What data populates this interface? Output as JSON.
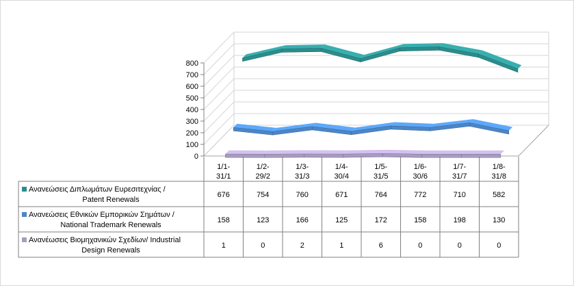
{
  "chart_data": {
    "type": "line",
    "style": "3d-line",
    "categories": [
      [
        "1/1-",
        "31/1"
      ],
      [
        "1/2-",
        "29/2"
      ],
      [
        "1/3-",
        "31/3"
      ],
      [
        "1/4-",
        "30/4"
      ],
      [
        "1/5-",
        "31/5"
      ],
      [
        "1/6-",
        "30/6"
      ],
      [
        "1/7-",
        "31/7"
      ],
      [
        "1/8-",
        "31/8"
      ]
    ],
    "ylim": [
      0,
      800
    ],
    "yticks": [
      "0",
      "100",
      "200",
      "300",
      "400",
      "500",
      "600",
      "700",
      "800"
    ],
    "grid": true,
    "data_table": true,
    "series": [
      {
        "name_lines": [
          "Ανανεώσεις Διπλωμάτων Ευρεσιτεχνίας  /",
          "Patent Renewals"
        ],
        "color": "#2c8c8c",
        "values": [
          676,
          754,
          760,
          671,
          764,
          772,
          710,
          582
        ]
      },
      {
        "name_lines": [
          "Ανανεώσεις Εθνικών Εμπορικών Σημάτων /",
          "National Trademark Renewals"
        ],
        "color": "#4a86c8",
        "values": [
          158,
          123,
          166,
          125,
          172,
          158,
          198,
          130
        ]
      },
      {
        "name_lines": [
          "Ανανέωσεις Βιομηχανικών Σχεδίων/ Industrial",
          "Design Renewals"
        ],
        "color": "#a99bc0",
        "values": [
          1,
          0,
          2,
          1,
          6,
          0,
          0,
          0
        ]
      }
    ]
  }
}
